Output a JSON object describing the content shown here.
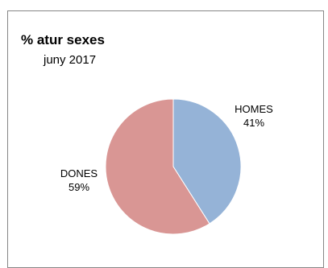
{
  "chart_data": {
    "type": "pie",
    "title": "% atur sexes",
    "subtitle": "juny 2017",
    "categories": [
      "HOMES",
      "DONES"
    ],
    "values": [
      41,
      59
    ],
    "value_labels": [
      "41%",
      "59%"
    ],
    "colors": [
      "#95b3d7",
      "#d99694"
    ],
    "legend": "none"
  }
}
